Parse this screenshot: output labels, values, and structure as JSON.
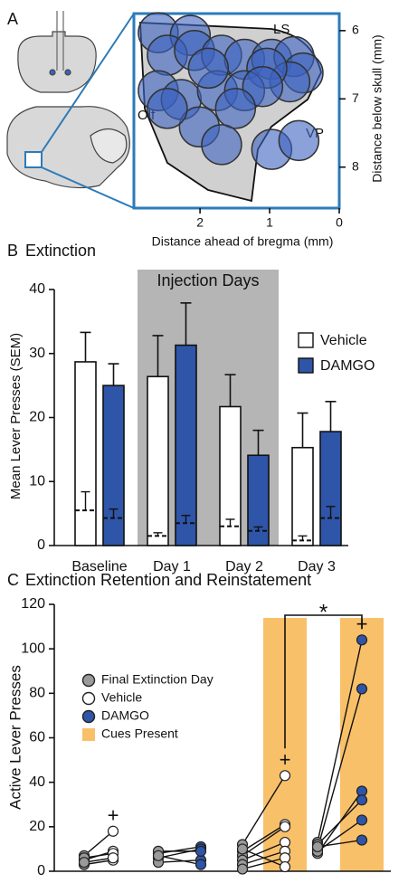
{
  "chart_data": [
    {
      "type": "scatter",
      "panel_label": "A",
      "xlabel": "Distance ahead of bregma (mm)",
      "ylabel": "Distance below skull (mm)",
      "annotations": [
        "LS",
        "Olf",
        "VP"
      ],
      "xlim": [
        2.95,
        0
      ],
      "xticks": [
        2,
        1,
        0
      ],
      "ylim": [
        8.6,
        5.75
      ],
      "yticks": [
        6,
        7,
        8
      ],
      "color": "#3c62c0",
      "x": [
        2.6,
        2.14,
        2.47,
        2.08,
        1.69,
        1.36,
        0.97,
        0.65,
        0.52,
        0.71,
        1.04,
        2.6,
        2.27,
        1.75,
        1.36,
        1.1,
        1.49,
        2.01,
        1.69,
        0.97,
        0.58,
        2.47,
        1.88
      ],
      "y": [
        6.03,
        6.07,
        6.36,
        6.29,
        6.36,
        6.42,
        6.42,
        6.38,
        6.62,
        6.75,
        6.55,
        6.88,
        7.01,
        6.88,
        6.88,
        6.82,
        7.14,
        7.41,
        7.67,
        7.74,
        7.61,
        7.14,
        6.55
      ]
    },
    {
      "type": "bar",
      "panel_label": "B",
      "title": "Extinction",
      "ylabel": "Mean Lever Presses (SEM)",
      "ylim": [
        0,
        40
      ],
      "yticks": [
        0,
        10,
        20,
        30,
        40
      ],
      "categories": [
        "Baseline",
        "Day 1",
        "Day 2",
        "Day 3"
      ],
      "shaded_label": "Injection Days",
      "shaded_categories": [
        1,
        2
      ],
      "series": [
        {
          "name": "Vehicle",
          "color": "#ffffff",
          "values": [
            28.7,
            26.4,
            21.7,
            15.3
          ],
          "errors": [
            4.6,
            6.4,
            5.0,
            5.4
          ],
          "dashed_values": [
            5.5,
            1.5,
            3.0,
            0.8
          ],
          "dashed_errors": [
            2.9,
            0.5,
            1.1,
            0.7
          ]
        },
        {
          "name": "DAMGO",
          "color": "#2e55a8",
          "values": [
            25.0,
            31.3,
            14.1,
            17.8
          ],
          "errors": [
            3.4,
            6.6,
            3.9,
            4.7
          ],
          "dashed_values": [
            4.3,
            3.5,
            2.3,
            4.3
          ],
          "dashed_errors": [
            1.4,
            1.2,
            0.6,
            1.8
          ]
        }
      ]
    },
    {
      "type": "paired",
      "panel_label": "C",
      "title": "Extinction Retention and Reinstatement",
      "ylabel": "Active Lever Presses",
      "ylim": [
        0,
        120
      ],
      "yticks": [
        0,
        20,
        40,
        60,
        80,
        100,
        120
      ],
      "legend": [
        {
          "name": "Final Extinction Day",
          "color": "#9a9a9a"
        },
        {
          "name": "Vehicle",
          "color": "#ffffff"
        },
        {
          "name": "DAMGO",
          "color": "#2e55a8"
        },
        {
          "name": "Cues Present",
          "color": "#f9c06a"
        }
      ],
      "groups": [
        {
          "treatment": 1,
          "cues": false,
          "marker": "+",
          "before": [
            7,
            5,
            3,
            6,
            4
          ],
          "after": [
            18,
            9,
            5,
            8,
            6
          ]
        },
        {
          "treatment": 2,
          "cues": false,
          "before": [
            8,
            6,
            4,
            9,
            7
          ],
          "after": [
            11,
            10,
            5,
            9,
            3
          ]
        },
        {
          "treatment": 1,
          "cues": true,
          "marker": "+",
          "before": [
            12,
            9,
            7,
            5,
            3,
            1,
            10
          ],
          "after": [
            43,
            21,
            20,
            13,
            9,
            6,
            2
          ]
        },
        {
          "treatment": 2,
          "cues": true,
          "marker": "+",
          "before": [
            13,
            10,
            8,
            12,
            9,
            11
          ],
          "after": [
            104,
            82,
            36,
            32,
            23,
            14
          ]
        }
      ],
      "significance": {
        "label": "*",
        "groups": [
          2,
          3
        ]
      }
    }
  ]
}
